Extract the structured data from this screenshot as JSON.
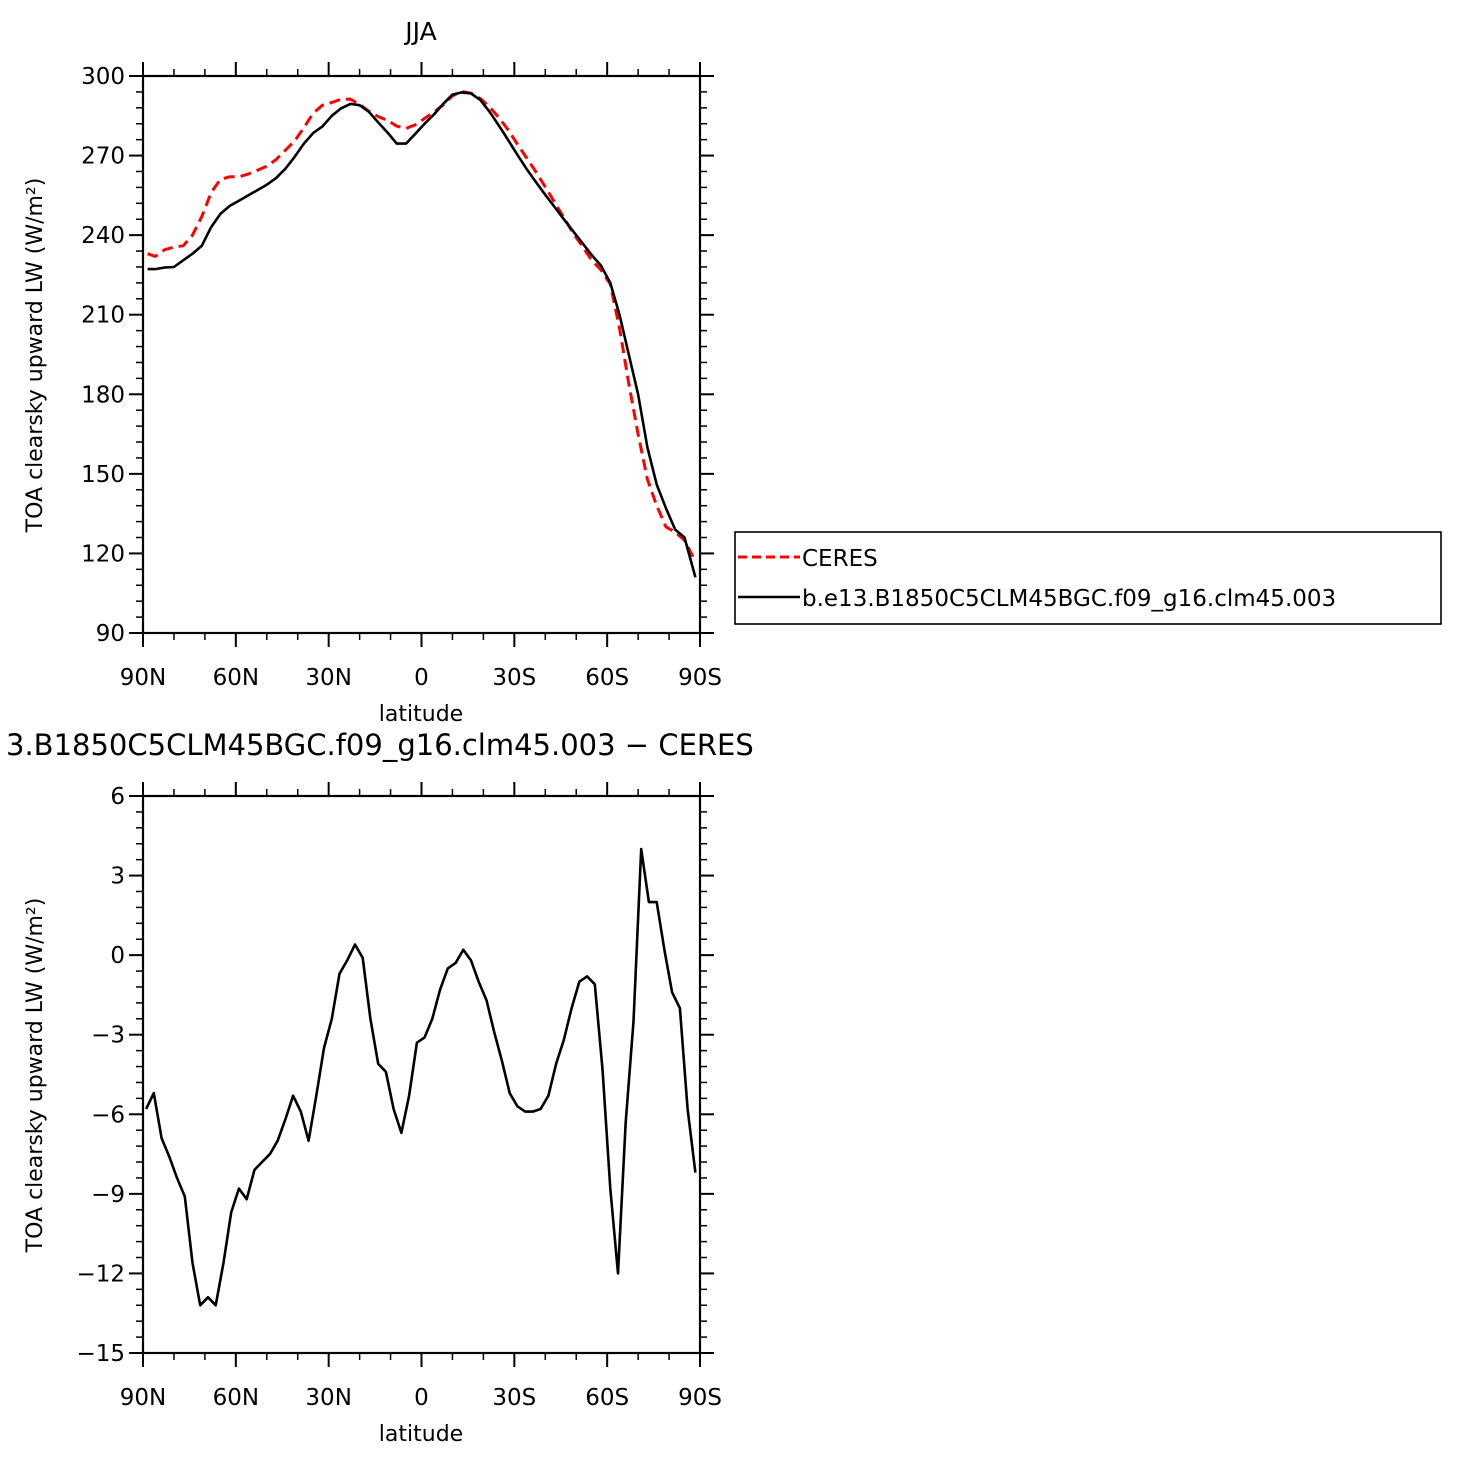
{
  "figure": {
    "legend": {
      "position": "right of top panel",
      "entries": [
        {
          "label": "CERES",
          "color": "#ff0000",
          "dash": "dashed"
        },
        {
          "label": "b.e13.B1850C5CLM45BGC.f09_g16.clm45.003",
          "color": "#000000",
          "dash": "solid"
        }
      ]
    }
  },
  "chart_data": [
    {
      "type": "line",
      "title": "JJA",
      "xlabel": "latitude",
      "ylabel": "TOA clearsky upward LW (W/m²)",
      "xlim": [
        -90,
        90
      ],
      "ylim": [
        90,
        300
      ],
      "xticks": [
        -90,
        -60,
        -30,
        0,
        30,
        60,
        90
      ],
      "xticklabels": [
        "90N",
        "60N",
        "30N",
        "0",
        "30S",
        "60S",
        "90S"
      ],
      "yticks": [
        90,
        120,
        150,
        180,
        210,
        240,
        270,
        300
      ],
      "yticklabels": [
        "90",
        "120",
        "150",
        "180",
        "210",
        "240",
        "270",
        "300"
      ],
      "grid": false,
      "series": [
        {
          "name": "CERES",
          "color": "#ff0000",
          "dash": "dashed",
          "x": [
            -88.5,
            -86,
            -83,
            -80,
            -77,
            -74,
            -71,
            -68,
            -65,
            -62,
            -59,
            -56,
            -53,
            -50,
            -47,
            -44,
            -41,
            -38,
            -35,
            -32,
            -29,
            -26,
            -23,
            -20,
            -17,
            -14,
            -11,
            -8,
            -5,
            -2,
            1,
            4,
            7,
            10,
            13,
            16,
            19,
            22,
            25,
            28,
            31,
            34,
            37,
            40,
            43,
            46,
            49,
            52,
            55,
            58,
            61,
            64,
            67,
            70,
            73,
            76,
            79,
            82,
            85,
            88.5
          ],
          "y": [
            233,
            232,
            234.5,
            235.5,
            236,
            240,
            247,
            256,
            261,
            262,
            262,
            263,
            264.5,
            266,
            268.5,
            272,
            275.5,
            280.5,
            286,
            289,
            290,
            291.2,
            291.3,
            289.3,
            286.7,
            284.7,
            283.3,
            281.1,
            280.2,
            281.6,
            284,
            286.4,
            289.1,
            292.5,
            294.2,
            293.5,
            291.5,
            288.3,
            284.3,
            279.7,
            274.3,
            269.1,
            263.8,
            258.2,
            252.4,
            246.6,
            240.8,
            235.7,
            230.6,
            226.9,
            221.5,
            205,
            184,
            165,
            148,
            138,
            130,
            128,
            125,
            117
          ]
        },
        {
          "name": "b.e13.B1850C5CLM45BGC.f09_g16.clm45.003",
          "color": "#000000",
          "dash": "solid",
          "x": [
            -88.5,
            -86,
            -83,
            -80,
            -77,
            -74,
            -71,
            -68,
            -65,
            -62,
            -59,
            -56,
            -53,
            -50,
            -47,
            -44,
            -41,
            -38,
            -35,
            -32,
            -29,
            -26,
            -23,
            -20,
            -17,
            -14,
            -11,
            -8,
            -5,
            -2,
            1,
            4,
            7,
            10,
            13,
            16,
            19,
            22,
            25,
            28,
            31,
            34,
            37,
            40,
            43,
            46,
            49,
            52,
            55,
            58,
            61,
            64,
            67,
            70,
            73,
            76,
            79,
            82,
            85,
            88.5
          ],
          "y": [
            227.2,
            227.2,
            227.8,
            228,
            230.5,
            233,
            236,
            243,
            248,
            251,
            253,
            255,
            257,
            259,
            261.5,
            265,
            269.5,
            274.5,
            278.5,
            281,
            285,
            287.8,
            289.5,
            289,
            286.5,
            282.5,
            278.7,
            274.5,
            274.5,
            278.2,
            282,
            285.5,
            289.5,
            293,
            293.8,
            293.4,
            291,
            286.5,
            281.3,
            275.9,
            270.3,
            264.9,
            260,
            255.2,
            250.6,
            246,
            241.5,
            237,
            232.5,
            228.5,
            222,
            210,
            195,
            180,
            160,
            146,
            137,
            129,
            126,
            111
          ]
        }
      ]
    },
    {
      "type": "line",
      "title": "3.B1850C5CLM45BGC.f09_g16.clm45.003 − CERES",
      "xlabel": "latitude",
      "ylabel": "TOA clearsky upward LW (W/m²)",
      "xlim": [
        -90,
        90
      ],
      "ylim": [
        -15,
        6
      ],
      "xticks": [
        -90,
        -60,
        -30,
        0,
        30,
        60,
        90
      ],
      "xticklabels": [
        "90N",
        "60N",
        "30N",
        "0",
        "30S",
        "60S",
        "90S"
      ],
      "yticks": [
        -15,
        -12,
        -9,
        -6,
        -3,
        0,
        3,
        6
      ],
      "yticklabels": [
        "−15",
        "−12",
        "−9",
        "−6",
        "−3",
        "0",
        "3",
        "6"
      ],
      "grid": false,
      "series": [
        {
          "color": "#000000",
          "dash": "solid",
          "x": [
            -89,
            -86.5,
            -84,
            -81.5,
            -79,
            -76.5,
            -74,
            -71.5,
            -69,
            -66.5,
            -64,
            -61.5,
            -59,
            -56.5,
            -54,
            -51.5,
            -49,
            -46.5,
            -44,
            -41.5,
            -39,
            -36.5,
            -34,
            -31.5,
            -29,
            -26.5,
            -24,
            -21.5,
            -19,
            -16.5,
            -14,
            -11.5,
            -9,
            -6.5,
            -4,
            -1.5,
            1,
            3.5,
            6,
            8.5,
            11,
            13.5,
            16,
            18.5,
            21,
            23.5,
            26,
            28.5,
            31,
            33.5,
            36,
            38.5,
            41,
            43.5,
            46,
            48.5,
            51,
            53.5,
            56,
            58.5,
            61,
            63.5,
            66,
            68.5,
            71,
            73.5,
            76,
            78.5,
            81,
            83.5,
            86,
            88.5
          ],
          "y": [
            -5.8,
            -5.2,
            -6.9,
            -7.6,
            -8.4,
            -9.1,
            -11.6,
            -13.2,
            -12.9,
            -13.2,
            -11.6,
            -9.7,
            -8.8,
            -9.2,
            -8.1,
            -7.8,
            -7.5,
            -7.0,
            -6.2,
            -5.3,
            -5.9,
            -7.0,
            -5.3,
            -3.5,
            -2.4,
            -0.7,
            -0.2,
            0.4,
            -0.1,
            -2.4,
            -4.1,
            -4.4,
            -5.8,
            -6.7,
            -5.3,
            -3.3,
            -3.1,
            -2.4,
            -1.3,
            -0.5,
            -0.3,
            0.2,
            -0.2,
            -1.0,
            -1.7,
            -2.9,
            -4.0,
            -5.2,
            -5.7,
            -5.9,
            -5.9,
            -5.8,
            -5.3,
            -4.1,
            -3.2,
            -2.0,
            -1.0,
            -0.8,
            -1.1,
            -4.3,
            -8.8,
            -12.0,
            -6.3,
            -2.5,
            4.0,
            2.0,
            2.0,
            0.2,
            -1.4,
            -2.0,
            -5.8,
            -8.2
          ]
        }
      ]
    }
  ]
}
